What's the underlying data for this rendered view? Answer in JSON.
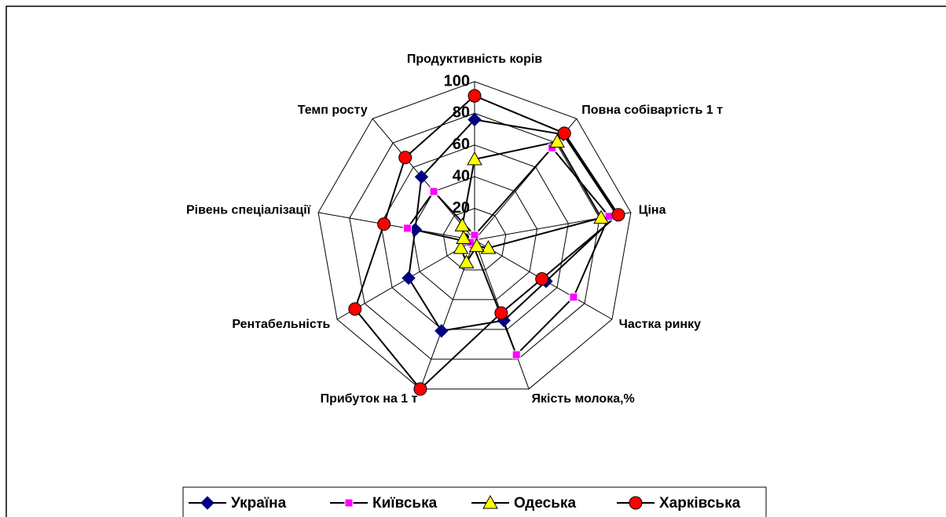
{
  "chart_data": {
    "type": "radar",
    "categories": [
      "Продуктивність корів",
      "Повна собівартість 1 т",
      "Ціна",
      "Частка ринку",
      "Якість молока,%",
      "Прибуток на 1 т",
      "Рентабельність",
      "Рівень спеціалізації",
      "Темп росту"
    ],
    "series": [
      {
        "name": "Україна",
        "color": "#000080",
        "marker": "diamond",
        "values": [
          76,
          87,
          91,
          52,
          54,
          61,
          48,
          38,
          52
        ]
      },
      {
        "name": "Київська",
        "color": "#ff00ff",
        "marker": "square",
        "values": [
          3,
          76,
          86,
          72,
          77,
          3,
          3,
          43,
          40
        ]
      },
      {
        "name": "Одеська",
        "color": "#ffff00",
        "marker": "triangle",
        "values": [
          51,
          81,
          81,
          10,
          4,
          15,
          10,
          7,
          12
        ]
      },
      {
        "name": "Харківська",
        "color": "#ff0000",
        "marker": "circle",
        "values": [
          91,
          88,
          92,
          49,
          49,
          100,
          87,
          58,
          68
        ]
      }
    ],
    "ylim": [
      0,
      100
    ],
    "yticks": [
      0,
      20,
      40,
      60,
      80,
      100
    ],
    "grid": true,
    "legend": "bottom"
  }
}
